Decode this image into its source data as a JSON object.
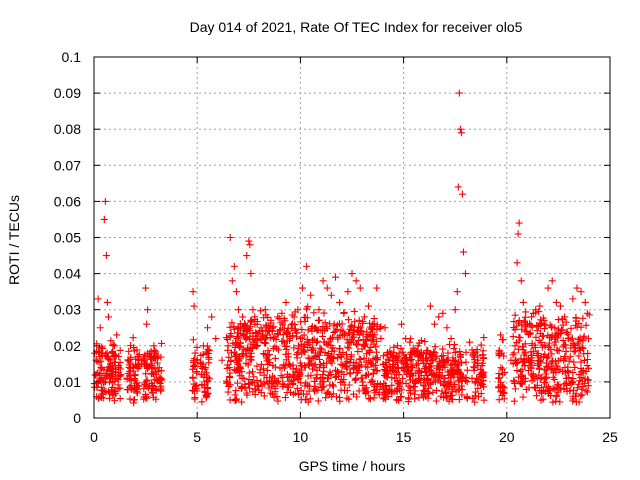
{
  "chart_data": {
    "type": "scatter",
    "title": "Day 014 of 2021, Rate Of TEC Index for receiver olo5",
    "xlabel": "GPS time / hours",
    "ylabel": "ROTI / TECUs",
    "xlim": [
      0,
      25
    ],
    "ylim": [
      0,
      0.1
    ],
    "x_ticks": [
      "0",
      "5",
      "10",
      "15",
      "20",
      "25"
    ],
    "y_ticks": [
      "0",
      "0.01",
      "0.02",
      "0.03",
      "0.04",
      "0.05",
      "0.06",
      "0.07",
      "0.08",
      "0.09",
      "0.1"
    ],
    "grid": true,
    "marker": "+",
    "color": "#ff0000",
    "series": [
      {
        "x": [
          0.1,
          0.2,
          0.3,
          0.4,
          0.5,
          0.55,
          0.6,
          0.65,
          0.7,
          0.8,
          0.9,
          1.0,
          1.1,
          1.2,
          1.3,
          1.6,
          1.7,
          1.8,
          1.9,
          2.0,
          2.1,
          2.3,
          2.5,
          2.55,
          2.6,
          2.7,
          2.8,
          2.9,
          3.0,
          3.1,
          3.2,
          4.8,
          4.85,
          4.9,
          5.0,
          5.3,
          5.5,
          5.7,
          5.9,
          6.2,
          6.5,
          6.6,
          6.7,
          6.8,
          6.9,
          7.0,
          7.2,
          7.4,
          7.5,
          7.55,
          7.6,
          7.7,
          7.9,
          8.1,
          8.3,
          8.5,
          8.7,
          8.9,
          9.1,
          9.3,
          9.5,
          9.7,
          9.9,
          10.1,
          10.3,
          10.5,
          10.7,
          10.9,
          11.1,
          11.3,
          11.5,
          11.7,
          11.9,
          12.1,
          12.3,
          12.5,
          12.7,
          12.9,
          13.1,
          13.3,
          13.5,
          13.7,
          13.9,
          14.1,
          14.3,
          14.5,
          14.7,
          14.9,
          15.1,
          15.3,
          15.5,
          15.7,
          15.9,
          16.1,
          16.3,
          16.5,
          16.7,
          16.9,
          17.1,
          17.3,
          17.5,
          17.6,
          17.65,
          17.7,
          17.75,
          17.8,
          17.85,
          17.9,
          18.0,
          18.2,
          18.4,
          18.6,
          18.7,
          19.6,
          19.7,
          19.8,
          20.2,
          20.4,
          20.5,
          20.55,
          20.6,
          20.7,
          20.8,
          21.0,
          21.2,
          21.4,
          21.6,
          21.8,
          22.0,
          22.2,
          22.4,
          22.6,
          22.8,
          23.0,
          23.2,
          23.4,
          23.6,
          23.8,
          23.9
        ],
        "y": [
          0.016,
          0.033,
          0.025,
          0.018,
          0.055,
          0.06,
          0.045,
          0.032,
          0.028,
          0.015,
          0.012,
          0.02,
          0.023,
          0.014,
          0.012,
          0.011,
          0.014,
          0.008,
          0.013,
          0.012,
          0.009,
          0.015,
          0.036,
          0.026,
          0.03,
          0.018,
          0.014,
          0.02,
          0.012,
          0.017,
          0.011,
          0.035,
          0.031,
          0.018,
          0.016,
          0.02,
          0.025,
          0.028,
          0.022,
          0.016,
          0.02,
          0.05,
          0.038,
          0.042,
          0.035,
          0.03,
          0.028,
          0.045,
          0.049,
          0.048,
          0.04,
          0.03,
          0.026,
          0.025,
          0.03,
          0.024,
          0.022,
          0.028,
          0.029,
          0.032,
          0.022,
          0.028,
          0.02,
          0.036,
          0.042,
          0.034,
          0.025,
          0.03,
          0.038,
          0.036,
          0.034,
          0.039,
          0.032,
          0.029,
          0.035,
          0.04,
          0.038,
          0.036,
          0.028,
          0.031,
          0.026,
          0.036,
          0.022,
          0.025,
          0.016,
          0.017,
          0.02,
          0.026,
          0.022,
          0.021,
          0.018,
          0.02,
          0.016,
          0.018,
          0.031,
          0.026,
          0.028,
          0.029,
          0.025,
          0.022,
          0.03,
          0.035,
          0.064,
          0.09,
          0.08,
          0.079,
          0.062,
          0.046,
          0.04,
          0.021,
          0.018,
          0.016,
          0.012,
          0.011,
          0.023,
          0.012,
          0.016,
          0.02,
          0.043,
          0.051,
          0.054,
          0.038,
          0.032,
          0.026,
          0.028,
          0.03,
          0.031,
          0.027,
          0.036,
          0.038,
          0.032,
          0.031,
          0.028,
          0.022,
          0.033,
          0.036,
          0.035,
          0.032,
          0.029
        ]
      }
    ]
  }
}
